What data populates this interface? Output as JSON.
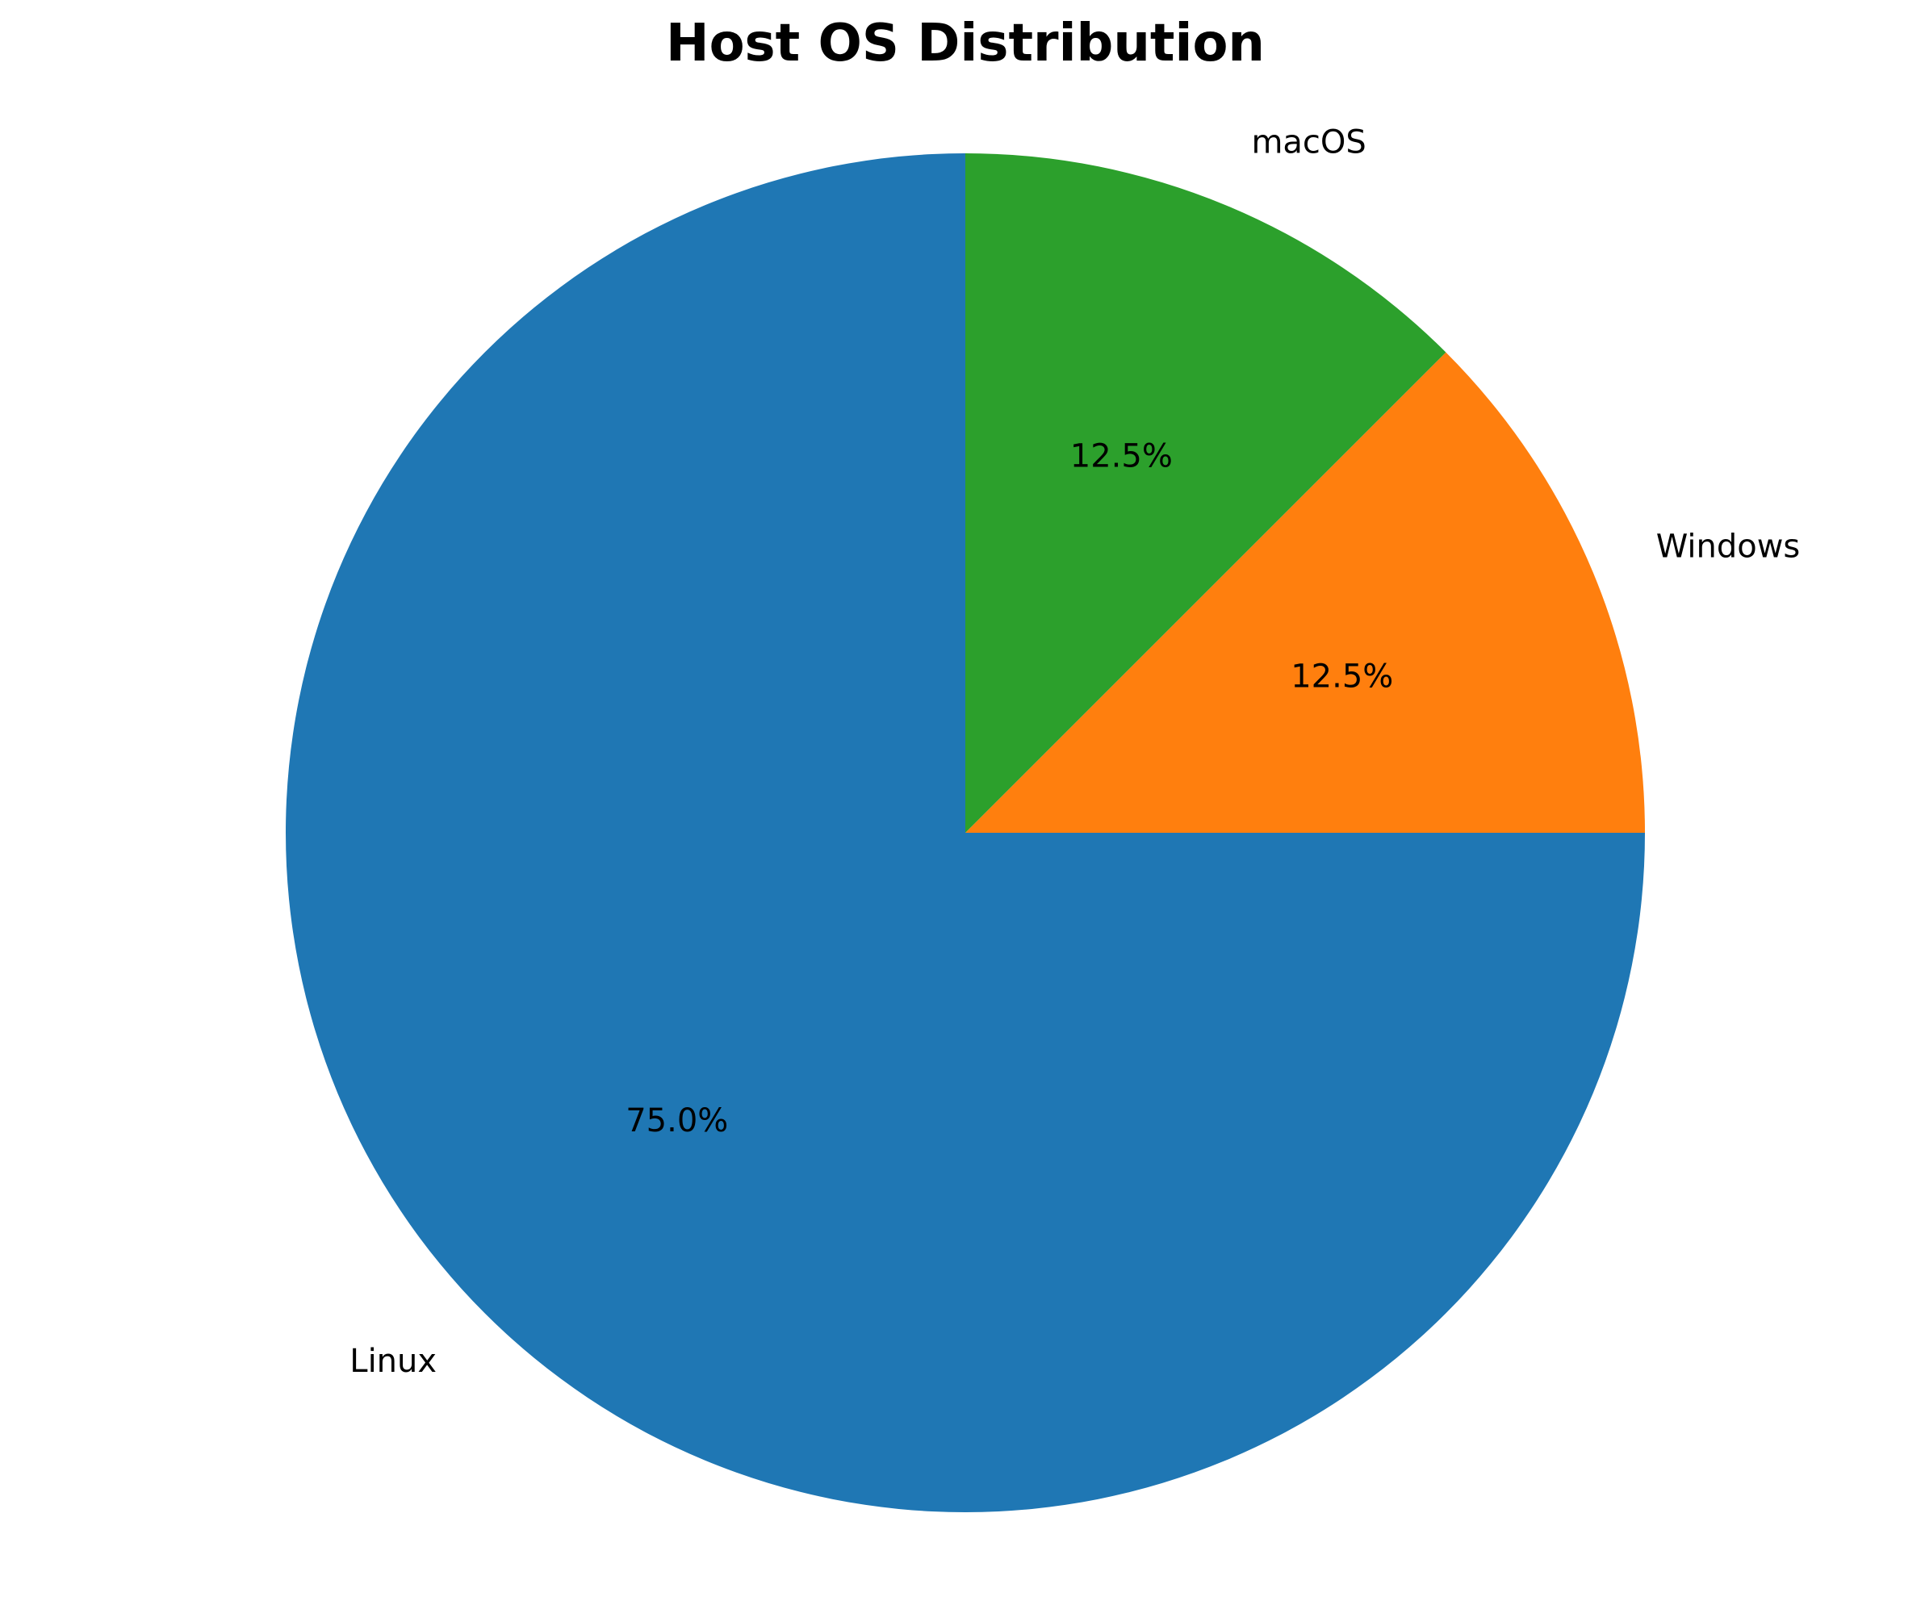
{
  "chart_data": {
    "type": "pie",
    "title": "Host OS Distribution",
    "start_angle_deg": 90,
    "direction": "counterclockwise",
    "slices": [
      {
        "label": "Linux",
        "value": 75.0,
        "pct_label": "75.0%",
        "color": "#1f77b4"
      },
      {
        "label": "Windows",
        "value": 12.5,
        "pct_label": "12.5%",
        "color": "#ff7f0e"
      },
      {
        "label": "macOS",
        "value": 12.5,
        "pct_label": "12.5%",
        "color": "#2ca02c"
      }
    ]
  }
}
